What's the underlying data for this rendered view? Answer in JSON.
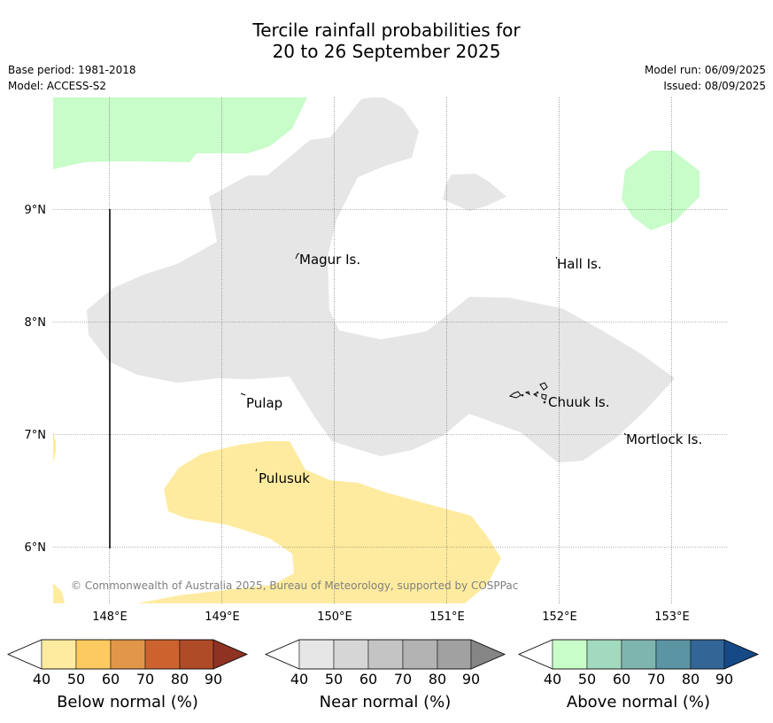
{
  "title": {
    "line1": "Tercile rainfall probabilities for",
    "line2": "20 to 26 September 2025"
  },
  "meta": {
    "base_period": "Base period: 1981-2018",
    "model": "Model: ACCESS-S2",
    "model_run": "Model run: 06/09/2025",
    "issued": "Issued: 08/09/2025"
  },
  "map": {
    "lat_labels": [
      "9°N",
      "8°N",
      "7°N",
      "6°N"
    ],
    "lon_labels": [
      "148°E",
      "149°E",
      "150°E",
      "151°E",
      "152°E",
      "153°E"
    ],
    "place_labels": [
      "Magur Is.",
      "Hall Is.",
      "Pulap",
      "Chuuk Is.",
      "Mortlock Is.",
      "Pulusuk"
    ],
    "copyright": "© Commonwealth of Australia 2025, Bureau of Meteorology, supported by COSPPac",
    "region_colors": {
      "near_normal_40_50": "#e6e6e6",
      "below_normal_40_50": "#ffeb9f",
      "above_normal_40_50": "#c8fcc9"
    }
  },
  "legends": [
    {
      "title": "Below normal (%)",
      "ticks": [
        "40",
        "50",
        "60",
        "70",
        "80",
        "90"
      ],
      "colors": [
        "#ffffff",
        "#ffeb9f",
        "#fdc961",
        "#e2964a",
        "#cc632f",
        "#b04b27",
        "#8e3322"
      ]
    },
    {
      "title": "Near normal (%)",
      "ticks": [
        "40",
        "50",
        "60",
        "70",
        "80",
        "90"
      ],
      "colors": [
        "#ffffff",
        "#e6e6e6",
        "#d6d6d6",
        "#c4c4c4",
        "#b3b3b3",
        "#a1a1a1",
        "#858585"
      ]
    },
    {
      "title": "Above normal (%)",
      "ticks": [
        "40",
        "50",
        "60",
        "70",
        "80",
        "90"
      ],
      "colors": [
        "#ffffff",
        "#c8fcc9",
        "#a2d9bf",
        "#7fb5af",
        "#5b94a3",
        "#336697",
        "#164a86"
      ]
    }
  ]
}
